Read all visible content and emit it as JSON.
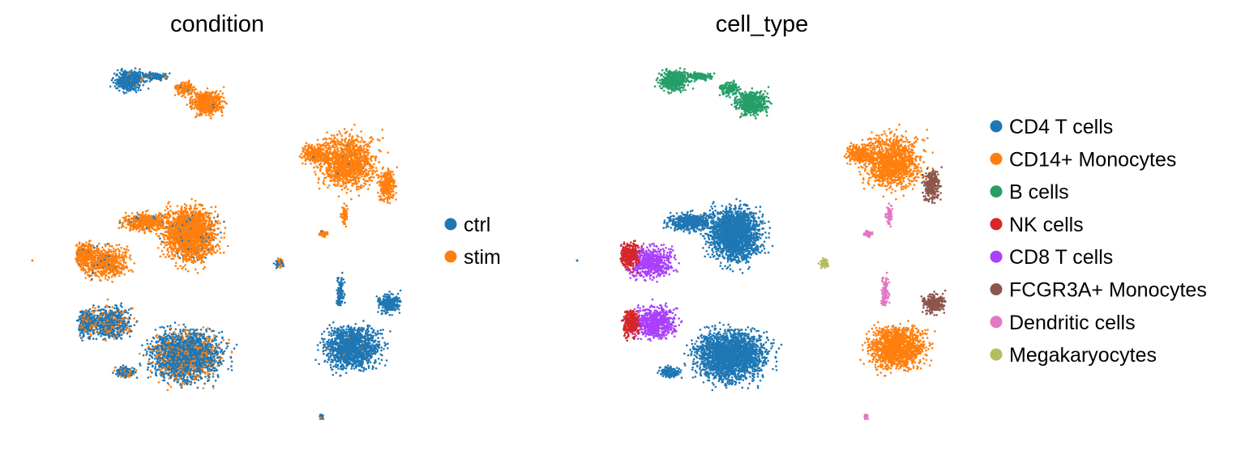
{
  "chart_data": [
    {
      "type": "scatter",
      "title": "condition",
      "xlabel": "",
      "ylabel": "",
      "axes_visible": false,
      "grid": false,
      "legend": "right",
      "color_by": "condition",
      "legend_entries": [
        {
          "label": "ctrl",
          "color": "#1f77b4"
        },
        {
          "label": "stim",
          "color": "#ff7f0e"
        }
      ]
    },
    {
      "type": "scatter",
      "title": "cell_type",
      "xlabel": "",
      "ylabel": "",
      "axes_visible": false,
      "grid": false,
      "legend": "right",
      "color_by": "cell_type",
      "legend_entries": [
        {
          "label": "CD4 T cells",
          "color": "#1f77b4"
        },
        {
          "label": "CD14+ Monocytes",
          "color": "#ff7f0e"
        },
        {
          "label": "B cells",
          "color": "#279e68"
        },
        {
          "label": "NK cells",
          "color": "#d62728"
        },
        {
          "label": "CD8 T cells",
          "color": "#aa40fc"
        },
        {
          "label": "FCGR3A+ Monocytes",
          "color": "#8c564b"
        },
        {
          "label": "Dendritic cells",
          "color": "#e377c2"
        },
        {
          "label": "Megakaryocytes",
          "color": "#b5bd61"
        }
      ]
    }
  ]
}
